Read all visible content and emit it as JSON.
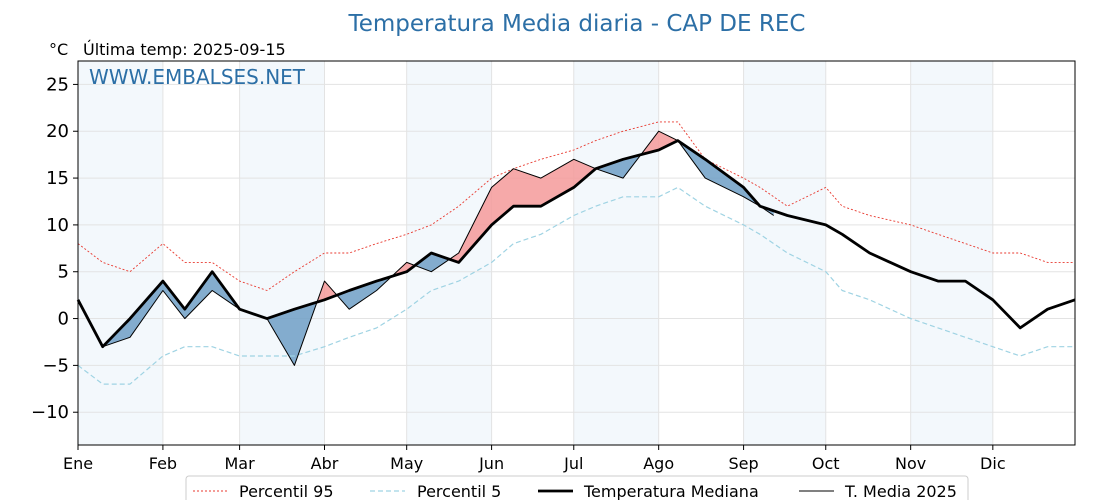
{
  "chart_data": {
    "type": "line",
    "title": "Temperatura Media diaria - CAP DE REC",
    "unit_label": "°C",
    "last_temp_label": "Última temp: 2025-09-15",
    "watermark": "WWW.EMBALSES.NET",
    "ylim": [
      -13.5,
      27.5
    ],
    "yticks": [
      25,
      20,
      15,
      10,
      5,
      0,
      -5,
      -10
    ],
    "ytick_labels": [
      "25",
      "20",
      "15",
      "10",
      "5",
      "0",
      "−5",
      "−10"
    ],
    "grid": true,
    "x_unit": "day_of_year",
    "xlim": [
      1,
      365
    ],
    "months": [
      {
        "label": "Ene",
        "start": 1
      },
      {
        "label": "Feb",
        "start": 32
      },
      {
        "label": "Mar",
        "start": 60
      },
      {
        "label": "Abr",
        "start": 91
      },
      {
        "label": "May",
        "start": 121
      },
      {
        "label": "Jun",
        "start": 152
      },
      {
        "label": "Jul",
        "start": 182
      },
      {
        "label": "Ago",
        "start": 213
      },
      {
        "label": "Sep",
        "start": 244
      },
      {
        "label": "Oct",
        "start": 274
      },
      {
        "label": "Nov",
        "start": 305
      },
      {
        "label": "Dic",
        "start": 335
      }
    ],
    "shaded_months": [
      "Ene",
      "Mar",
      "May",
      "Jul",
      "Sep",
      "Nov"
    ],
    "legend_position": "bottom-center",
    "series": [
      {
        "name": "Percentil 95",
        "color": "#e8392f",
        "style": "dotted",
        "x": [
          1,
          10,
          20,
          32,
          40,
          50,
          60,
          70,
          80,
          91,
          100,
          110,
          121,
          130,
          140,
          152,
          160,
          170,
          182,
          190,
          200,
          213,
          220,
          230,
          244,
          250,
          260,
          274,
          280,
          290,
          305,
          315,
          325,
          335,
          345,
          355,
          365
        ],
        "y": [
          8,
          6,
          5,
          8,
          6,
          6,
          4,
          3,
          5,
          7,
          7,
          8,
          9,
          10,
          12,
          15,
          16,
          17,
          18,
          19,
          20,
          21,
          21,
          17,
          15,
          14,
          12,
          14,
          12,
          11,
          10,
          9,
          8,
          7,
          7,
          6,
          6
        ]
      },
      {
        "name": "Percentil 5",
        "color": "#9fd3e3",
        "style": "dashed",
        "x": [
          1,
          10,
          20,
          32,
          40,
          50,
          60,
          70,
          80,
          91,
          100,
          110,
          121,
          130,
          140,
          152,
          160,
          170,
          182,
          190,
          200,
          213,
          220,
          230,
          244,
          250,
          260,
          274,
          280,
          290,
          305,
          315,
          325,
          335,
          345,
          355,
          365
        ],
        "y": [
          -5,
          -7,
          -7,
          -4,
          -3,
          -3,
          -4,
          -4,
          -4,
          -3,
          -2,
          -1,
          1,
          3,
          4,
          6,
          8,
          9,
          11,
          12,
          13,
          13,
          14,
          12,
          10,
          9,
          7,
          5,
          3,
          2,
          0,
          -1,
          -2,
          -3,
          -4,
          -3,
          -3
        ]
      },
      {
        "name": "Temperatura Mediana",
        "color": "#000000",
        "style": "thick",
        "x": [
          1,
          10,
          20,
          32,
          40,
          50,
          60,
          70,
          80,
          91,
          100,
          110,
          121,
          130,
          140,
          152,
          160,
          170,
          182,
          190,
          200,
          213,
          220,
          230,
          244,
          250,
          260,
          274,
          280,
          290,
          305,
          315,
          325,
          335,
          345,
          355,
          365
        ],
        "y": [
          2,
          -3,
          0,
          4,
          1,
          5,
          1,
          0,
          1,
          2,
          3,
          4,
          5,
          7,
          6,
          10,
          12,
          12,
          14,
          16,
          17,
          18,
          19,
          17,
          14,
          12,
          11,
          10,
          9,
          7,
          5,
          4,
          4,
          2,
          -1,
          1,
          2
        ]
      },
      {
        "name": "T. Media 2025",
        "color": "#000000",
        "style": "thin",
        "x": [
          1,
          10,
          20,
          32,
          40,
          50,
          60,
          70,
          80,
          91,
          100,
          110,
          121,
          130,
          140,
          152,
          160,
          170,
          182,
          190,
          200,
          213,
          220,
          230,
          244,
          250,
          255
        ],
        "y": [
          2,
          -3,
          -2,
          3,
          0,
          3,
          1,
          0,
          -5,
          4,
          1,
          3,
          6,
          5,
          7,
          14,
          16,
          15,
          17,
          16,
          15,
          20,
          19,
          15,
          13,
          12,
          11
        ]
      }
    ]
  }
}
